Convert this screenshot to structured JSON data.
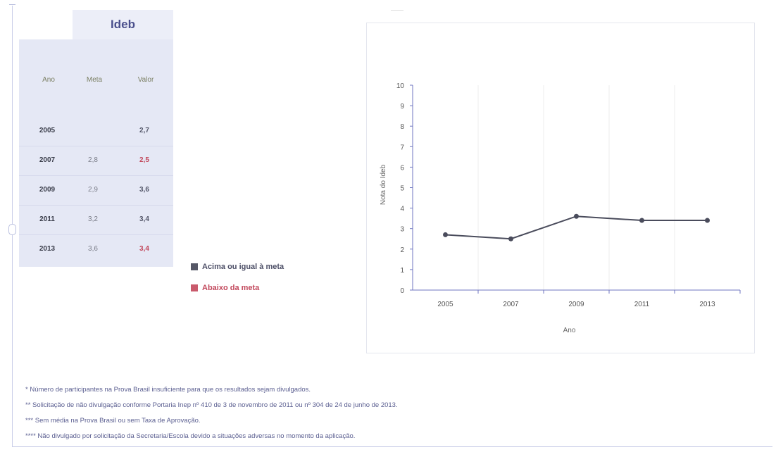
{
  "table": {
    "title": "Ideb",
    "headers": {
      "year": "Ano",
      "meta": "Meta",
      "valor": "Valor"
    },
    "rows": [
      {
        "year": "2005",
        "meta": "",
        "valor": "2,7",
        "status": "above"
      },
      {
        "year": "2007",
        "meta": "2,8",
        "valor": "2,5",
        "status": "below"
      },
      {
        "year": "2009",
        "meta": "2,9",
        "valor": "3,6",
        "status": "above"
      },
      {
        "year": "2011",
        "meta": "3,2",
        "valor": "3,4",
        "status": "above"
      },
      {
        "year": "2013",
        "meta": "3,6",
        "valor": "3,4",
        "status": "below"
      }
    ]
  },
  "legend": {
    "above": "Acima ou igual à meta",
    "below": "Abaixo da meta"
  },
  "colors": {
    "above": "#555766",
    "below": "#c2485c",
    "line": "#4a4c5c",
    "axis": "#6f76c0"
  },
  "chart_data": {
    "type": "line",
    "categories": [
      "2005",
      "2007",
      "2009",
      "2011",
      "2013"
    ],
    "series": [
      {
        "values": [
          2.7,
          2.5,
          3.6,
          3.4,
          3.4
        ]
      }
    ],
    "xlabel": "Ano",
    "ylabel": "Nota do Ideb",
    "ylim": [
      0,
      10
    ],
    "yticks": [
      "0",
      "1",
      "2",
      "3",
      "4",
      "5",
      "6",
      "7",
      "8",
      "9",
      "10"
    ],
    "grid": true
  },
  "notes": [
    "* Número de participantes na Prova Brasil insuficiente para que os resultados sejam divulgados.",
    "** Solicitação de não divulgação conforme Portaria Inep nº 410 de 3 de novembro de 2011 ou nº 304 de 24 de junho de 2013.",
    "*** Sem média na Prova Brasil ou sem Taxa de Aprovação.",
    "**** Não divulgado por solicitação da Secretaria/Escola devido a situações adversas no momento da aplicação."
  ]
}
